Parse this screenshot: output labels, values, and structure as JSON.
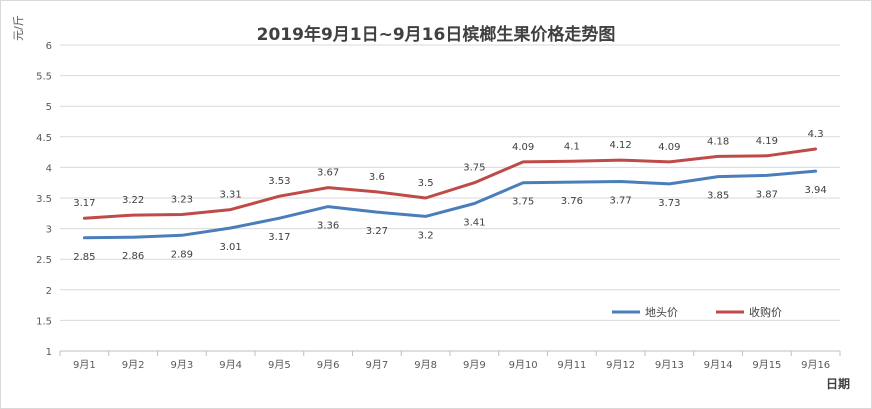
{
  "chart_data": {
    "type": "line",
    "title": "2019年9月1日~9月16日槟榔生果价格走势图",
    "ylabel": "元/斤",
    "xlabel": "日期",
    "ylim": [
      1,
      6
    ],
    "yticks": [
      "1",
      "1.5",
      "2",
      "2.5",
      "3",
      "3.5",
      "4",
      "4.5",
      "5",
      "5.5",
      "6"
    ],
    "grid": true,
    "legend_position": "bottom-right",
    "categories": [
      "9月1",
      "9月2",
      "9月3",
      "9月4",
      "9月5",
      "9月6",
      "9月7",
      "9月8",
      "9月9",
      "9月10",
      "9月11",
      "9月12",
      "9月13",
      "9月14",
      "9月15",
      "9月16"
    ],
    "series": [
      {
        "name": "地头价",
        "color": "#4a7ebb",
        "values": [
          2.85,
          2.86,
          2.89,
          3.01,
          3.17,
          3.36,
          3.27,
          3.2,
          3.41,
          3.75,
          3.76,
          3.77,
          3.73,
          3.85,
          3.87,
          3.94
        ],
        "labels": [
          "2.85",
          "2.86",
          "2.89",
          "3.01",
          "3.17",
          "3.36",
          "3.27",
          "3.2",
          "3.41",
          "3.75",
          "3.76",
          "3.77",
          "3.73",
          "3.85",
          "3.87",
          "3.94"
        ],
        "label_position": "below"
      },
      {
        "name": "收购价",
        "color": "#be4b48",
        "values": [
          3.17,
          3.22,
          3.23,
          3.31,
          3.53,
          3.67,
          3.6,
          3.5,
          3.75,
          4.09,
          4.1,
          4.12,
          4.09,
          4.18,
          4.19,
          4.3
        ],
        "labels": [
          "3.17",
          "3.22",
          "3.23",
          "3.31",
          "3.53",
          "3.67",
          "3.6",
          "3.5",
          "3.75",
          "4.09",
          "4.1",
          "4.12",
          "4.09",
          "4.18",
          "4.19",
          "4.3"
        ],
        "label_position": "above"
      }
    ]
  }
}
